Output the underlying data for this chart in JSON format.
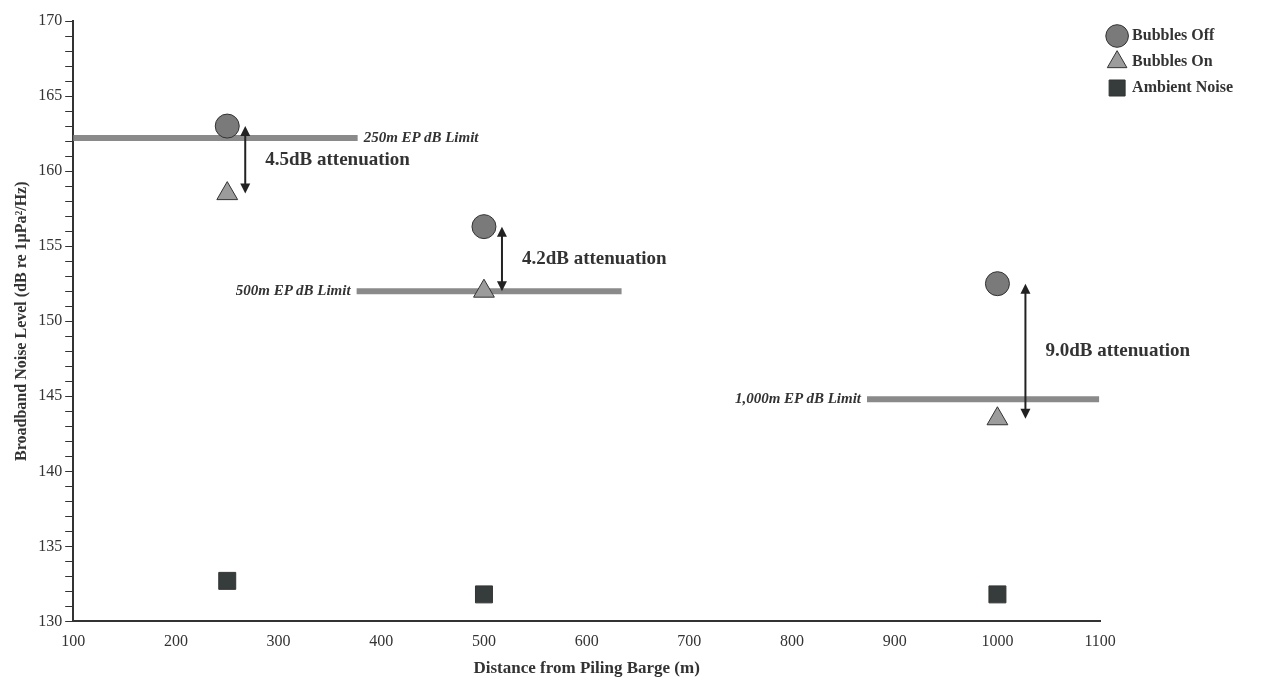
{
  "chart_data": {
    "type": "scatter",
    "xlabel": "Distance from Piling Barge (m)",
    "ylabel": "Broadband Noise Level (dB re 1μPa²/Hz)",
    "xlim": [
      100,
      1100
    ],
    "xticks": [
      100,
      200,
      300,
      400,
      500,
      600,
      700,
      800,
      900,
      1000,
      1100
    ],
    "ylim": [
      130,
      170
    ],
    "yticks": [
      130,
      {
        "value": 131,
        "label": null
      },
      {
        "value": 132,
        "label": null
      },
      {
        "value": 133,
        "label": null
      },
      {
        "value": 134,
        "label": null
      },
      135,
      {
        "value": 136,
        "label": null
      },
      {
        "value": 137,
        "label": null
      },
      {
        "value": 138,
        "label": null
      },
      {
        "value": 139,
        "label": null
      },
      140,
      {
        "value": 141,
        "label": null
      },
      {
        "value": 142,
        "label": null
      },
      {
        "value": 143,
        "label": null
      },
      {
        "value": 144,
        "label": null
      },
      145,
      {
        "value": 146,
        "label": null
      },
      {
        "value": 147,
        "label": null
      },
      {
        "value": 148,
        "label": null
      },
      {
        "value": 149,
        "label": null
      },
      150,
      {
        "value": 151,
        "label": null
      },
      {
        "value": 152,
        "label": null
      },
      {
        "value": 153,
        "label": null
      },
      {
        "value": 154,
        "label": null
      },
      155,
      {
        "value": 156,
        "label": null
      },
      {
        "value": 157,
        "label": null
      },
      {
        "value": 158,
        "label": null
      },
      {
        "value": 159,
        "label": null
      },
      160,
      {
        "value": 161,
        "label": null
      },
      {
        "value": 162,
        "label": null
      },
      {
        "value": 163,
        "label": null
      },
      {
        "value": 164,
        "label": null
      },
      165,
      {
        "value": 166,
        "label": null
      },
      {
        "value": 167,
        "label": null
      },
      {
        "value": 168,
        "label": null
      },
      {
        "value": 169,
        "label": null
      },
      170
    ],
    "grid": false,
    "legend": "top right",
    "series": [
      {
        "name": "Bubbles Off",
        "color": "#7a7a7a",
        "marker": "circle",
        "x": [
          250,
          500,
          1000
        ],
        "values": [
          163,
          156.3,
          152.5
        ]
      },
      {
        "name": "Bubbles On",
        "color": "#9c9c9c",
        "marker": "triangle",
        "x": [
          250,
          500,
          1000
        ],
        "values": [
          158.5,
          152,
          143.5
        ]
      },
      {
        "name": "Ambient Noise",
        "color": "#363c3c",
        "marker": "square",
        "x": [
          250,
          500,
          1000
        ],
        "values": [
          132.7,
          131.8,
          131.8
        ]
      },
      {
        "type": "line",
        "color": "#8a8a8a",
        "marker": "none",
        "x": [
          100,
          377
        ],
        "values": [
          162.2,
          162.2
        ]
      },
      {
        "type": "line",
        "color": "#8a8a8a",
        "marker": "none",
        "x": [
          376,
          634
        ],
        "values": [
          152,
          152
        ]
      },
      {
        "type": "line",
        "color": "#8a8a8a",
        "marker": "none",
        "x": [
          873,
          1099
        ],
        "values": [
          144.8,
          144.8
        ]
      }
    ],
    "annotations": [
      {
        "text": "250m EP dB Limit",
        "x": 377,
        "y": 162.2
      },
      {
        "text": "500m EP dB Limit",
        "x": 376,
        "y": 152
      },
      {
        "text": "1,000m EP dB Limit",
        "x": 873,
        "y": 144.8
      },
      "4.5dB attenuation",
      "4.2dB attenuation",
      "9.0dB attenuation"
    ]
  }
}
